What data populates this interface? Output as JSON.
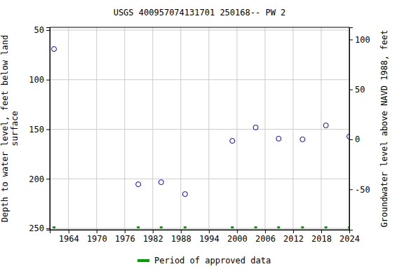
{
  "chart_data": {
    "type": "scatter",
    "title": "USGS 400957074131701 250168-- PW 2",
    "y_label": "Depth to water level, feet below land surface",
    "y2_label": "Groundwater level above NAVD 1988, feet",
    "x": [
      1960.9,
      1978.9,
      1983.8,
      1988.9,
      1999.0,
      2004.0,
      2008.9,
      2014.0,
      2019.0,
      2024.0
    ],
    "series": [
      {
        "color": "#0000cc",
        "marker": "circle",
        "values": [
          69.1,
          205.5,
          203.4,
          215.4,
          161.7,
          148.2,
          159.5,
          160.2,
          146.1,
          157.4
        ]
      },
      {
        "name": "Period of approved data",
        "color": "#00a000",
        "marker": "square",
        "values": [
          249,
          249,
          249,
          249,
          249,
          249,
          249,
          249,
          249,
          249
        ]
      }
    ],
    "xlim": [
      1960,
      2024
    ],
    "xticks": [
      1964,
      1970,
      1976,
      1982,
      1988,
      1994,
      2000,
      2006,
      2012,
      2018,
      2024
    ],
    "ylim": [
      47.2,
      251.4
    ],
    "yticks": [
      50,
      100,
      150,
      200,
      250
    ],
    "y2lim": [
      112.2,
      -90.5
    ],
    "y2ticks": [
      100,
      50,
      0,
      -50
    ],
    "grid": true,
    "legend": "bottom"
  }
}
